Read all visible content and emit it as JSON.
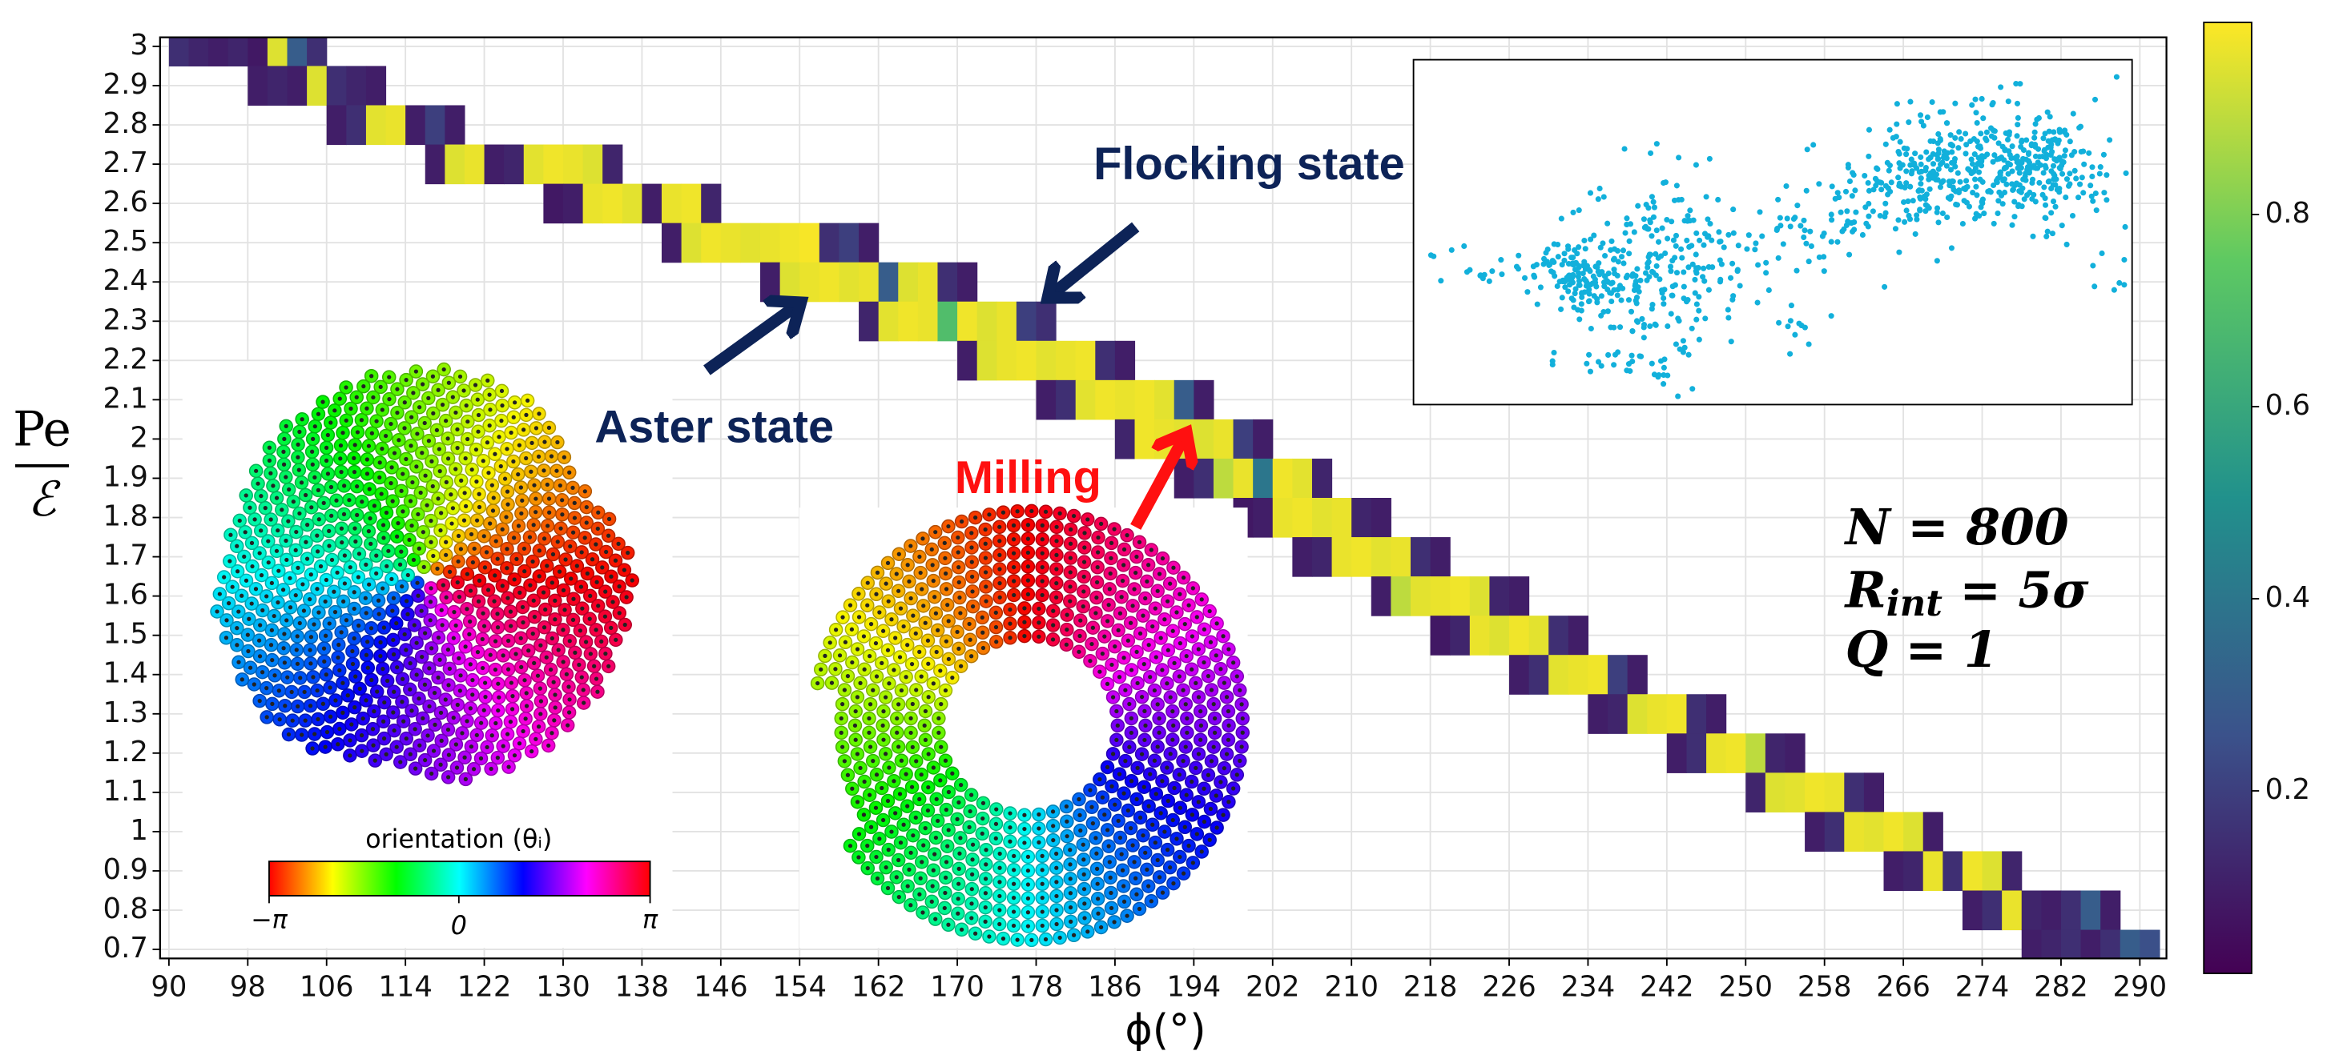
{
  "chart_data": {
    "type": "heatmap",
    "xlabel": "ϕ(°)",
    "ylabel": {
      "numerator": "Pe",
      "denominator": "ℰ"
    },
    "xlim": [
      89.1,
      292.7
    ],
    "ylim": [
      0.677,
      3.023
    ],
    "xticks": [
      90,
      98,
      106,
      114,
      122,
      130,
      138,
      146,
      154,
      162,
      170,
      178,
      186,
      194,
      202,
      210,
      218,
      226,
      234,
      242,
      250,
      258,
      266,
      274,
      282,
      290
    ],
    "yticks": [
      0.7,
      0.8,
      0.9,
      1.0,
      1.1,
      1.2,
      1.3,
      1.4,
      1.5,
      1.6,
      1.7,
      1.8,
      1.9,
      2.0,
      2.1,
      2.2,
      2.3,
      2.4,
      2.5,
      2.6,
      2.7,
      2.8,
      2.9,
      3.0
    ],
    "grid": true,
    "colormap": "viridis",
    "colorbar": {
      "lim": [
        0.01,
        1.0
      ],
      "ticks": [
        0.2,
        0.4,
        0.6,
        0.8
      ]
    },
    "rows": [
      {
        "y": 3.0,
        "x": [
          90,
          92,
          94,
          96,
          98,
          100,
          102,
          104
        ],
        "values": [
          0.15,
          0.12,
          0.1,
          0.12,
          0.08,
          0.95,
          0.3,
          0.15
        ]
      },
      {
        "y": 2.9,
        "x": [
          98,
          100,
          102,
          104,
          106,
          108,
          110
        ],
        "values": [
          0.1,
          0.12,
          0.1,
          0.95,
          0.15,
          0.12,
          0.1
        ]
      },
      {
        "y": 2.8,
        "x": [
          106,
          108,
          110,
          112,
          114,
          116,
          118
        ],
        "values": [
          0.1,
          0.15,
          0.96,
          0.97,
          0.1,
          0.2,
          0.1
        ]
      },
      {
        "y": 2.7,
        "x": [
          116,
          118,
          120,
          122,
          124,
          126,
          128,
          130,
          132,
          134
        ],
        "values": [
          0.1,
          0.95,
          0.97,
          0.1,
          0.12,
          0.96,
          0.98,
          0.97,
          0.95,
          0.12
        ]
      },
      {
        "y": 2.6,
        "x": [
          128,
          130,
          132,
          134,
          136,
          138,
          140,
          142,
          144
        ],
        "values": [
          0.08,
          0.1,
          0.97,
          0.98,
          0.96,
          0.1,
          0.97,
          0.98,
          0.12
        ]
      },
      {
        "y": 2.5,
        "x": [
          140,
          142,
          144,
          146,
          148,
          150,
          152,
          154,
          156,
          158,
          160
        ],
        "values": [
          0.1,
          0.95,
          0.98,
          0.97,
          0.96,
          0.97,
          0.98,
          0.99,
          0.15,
          0.2,
          0.1
        ]
      },
      {
        "y": 2.4,
        "x": [
          150,
          152,
          154,
          156,
          158,
          160,
          162,
          164,
          166,
          168,
          170
        ],
        "values": [
          0.1,
          0.95,
          0.97,
          0.98,
          0.96,
          0.97,
          0.3,
          0.95,
          0.97,
          0.15,
          0.1
        ]
      },
      {
        "y": 2.3,
        "x": [
          160,
          162,
          164,
          166,
          168,
          170,
          172,
          174,
          176,
          178
        ],
        "values": [
          0.12,
          0.96,
          0.98,
          0.97,
          0.7,
          0.98,
          0.95,
          0.97,
          0.2,
          0.15
        ]
      },
      {
        "y": 2.2,
        "x": [
          170,
          172,
          174,
          176,
          178,
          180,
          182,
          184,
          186
        ],
        "values": [
          0.1,
          0.95,
          0.97,
          0.98,
          0.96,
          0.97,
          0.98,
          0.15,
          0.1
        ]
      },
      {
        "y": 2.1,
        "x": [
          178,
          180,
          182,
          184,
          186,
          188,
          190,
          192,
          194
        ],
        "values": [
          0.1,
          0.15,
          0.96,
          0.98,
          0.97,
          0.98,
          0.96,
          0.3,
          0.1
        ]
      },
      {
        "y": 2.0,
        "x": [
          186,
          188,
          190,
          192,
          194,
          196,
          198,
          200
        ],
        "values": [
          0.12,
          0.98,
          0.97,
          0.96,
          0.95,
          0.97,
          0.2,
          0.1
        ]
      },
      {
        "y": 1.9,
        "x": [
          192,
          194,
          196,
          198,
          200,
          202,
          204,
          206
        ],
        "values": [
          0.1,
          0.15,
          0.9,
          0.97,
          0.4,
          0.98,
          0.96,
          0.12
        ]
      },
      {
        "y": 1.8,
        "x": [
          198,
          200,
          202,
          204,
          206,
          208,
          210,
          212
        ],
        "values": [
          0.08,
          0.1,
          0.97,
          0.98,
          0.96,
          0.97,
          0.12,
          0.1
        ]
      },
      {
        "y": 1.7,
        "x": [
          204,
          206,
          208,
          210,
          212,
          214,
          216,
          218
        ],
        "values": [
          0.1,
          0.12,
          0.97,
          0.98,
          0.96,
          0.97,
          0.15,
          0.1
        ]
      },
      {
        "y": 1.6,
        "x": [
          212,
          214,
          216,
          218,
          220,
          222,
          224,
          226
        ],
        "values": [
          0.1,
          0.9,
          0.96,
          0.97,
          0.98,
          0.95,
          0.12,
          0.1
        ]
      },
      {
        "y": 1.5,
        "x": [
          218,
          220,
          222,
          224,
          226,
          228,
          230,
          232
        ],
        "values": [
          0.08,
          0.12,
          0.97,
          0.95,
          0.98,
          0.96,
          0.15,
          0.1
        ]
      },
      {
        "y": 1.4,
        "x": [
          226,
          228,
          230,
          232,
          234,
          236,
          238
        ],
        "values": [
          0.1,
          0.15,
          0.96,
          0.97,
          0.98,
          0.2,
          0.1
        ]
      },
      {
        "y": 1.3,
        "x": [
          234,
          236,
          238,
          240,
          242,
          244,
          246
        ],
        "values": [
          0.1,
          0.12,
          0.95,
          0.97,
          0.98,
          0.15,
          0.1
        ]
      },
      {
        "y": 1.2,
        "x": [
          242,
          244,
          246,
          248,
          250,
          252,
          254
        ],
        "values": [
          0.1,
          0.15,
          0.97,
          0.98,
          0.9,
          0.12,
          0.1
        ]
      },
      {
        "y": 1.1,
        "x": [
          250,
          252,
          254,
          256,
          258,
          260,
          262
        ],
        "values": [
          0.12,
          0.95,
          0.96,
          0.98,
          0.97,
          0.15,
          0.1
        ]
      },
      {
        "y": 1.0,
        "x": [
          256,
          258,
          260,
          262,
          264,
          266,
          268
        ],
        "values": [
          0.1,
          0.15,
          0.97,
          0.96,
          0.98,
          0.95,
          0.1
        ]
      },
      {
        "y": 0.9,
        "x": [
          264,
          266,
          268,
          270,
          272,
          274,
          276
        ],
        "values": [
          0.1,
          0.12,
          0.97,
          0.15,
          0.98,
          0.95,
          0.12
        ]
      },
      {
        "y": 0.8,
        "x": [
          272,
          274,
          276,
          278,
          280,
          282,
          284,
          286
        ],
        "values": [
          0.1,
          0.15,
          0.97,
          0.12,
          0.1,
          0.15,
          0.3,
          0.1
        ]
      },
      {
        "y": 0.7,
        "x": [
          278,
          280,
          282,
          284,
          286,
          288,
          290
        ],
        "values": [
          0.1,
          0.12,
          0.15,
          0.1,
          0.15,
          0.3,
          0.25
        ]
      }
    ],
    "annotations": {
      "flocking": "Flocking state",
      "aster": "Aster state",
      "milling": "Milling"
    },
    "parameters": {
      "n": "N = 800",
      "rint": {
        "base": "R",
        "sub": "int",
        "rest": " = 5σ"
      },
      "q": "Q = 1"
    },
    "orientation_bar": {
      "label": "orientation (θᵢ)",
      "ticks": [
        "−π",
        "0",
        "π"
      ]
    }
  }
}
